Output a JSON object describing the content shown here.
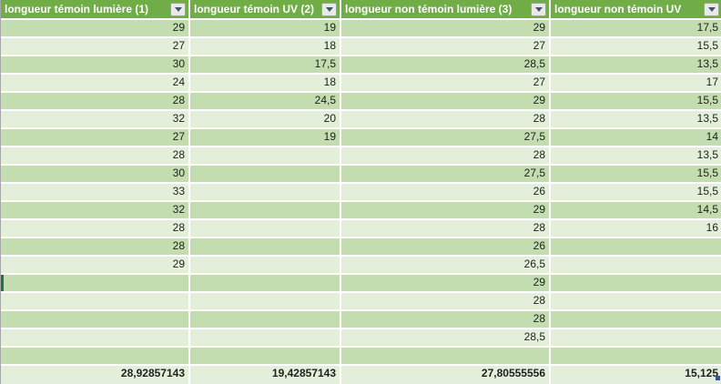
{
  "app": "spreadsheet-filtered-table",
  "colors": {
    "header_green": "#71AD47",
    "band_dark": "#C4DDB0",
    "band_light": "#E3EFDB",
    "grid_white": "#FFFFFF",
    "text_dark": "#1F1F1F",
    "edge_gray": "#A6A6A6",
    "selection_green": "#1E7145",
    "handle_blue": "#2F5597",
    "btn_bg": "#E9E9E9",
    "btn_border": "#9E9E9E",
    "btn_arrow": "#44546A"
  },
  "icons": {
    "header_filter": "filter-dropdown-arrow-icon"
  },
  "table": {
    "columns": [
      {
        "label": "longueur témoin lumière  (1)"
      },
      {
        "label": "longueur témoin UV (2)"
      },
      {
        "label": "longueur non témoin lumière  (3)"
      },
      {
        "label": "longueur non témoin UV"
      }
    ],
    "rows": [
      [
        "29",
        "19",
        "29",
        "17,5"
      ],
      [
        "27",
        "18",
        "27",
        "15,5"
      ],
      [
        "30",
        "17,5",
        "28,5",
        "13,5"
      ],
      [
        "24",
        "18",
        "27",
        "17"
      ],
      [
        "28",
        "24,5",
        "29",
        "15,5"
      ],
      [
        "32",
        "20",
        "28",
        "13,5"
      ],
      [
        "27",
        "19",
        "27,5",
        "14"
      ],
      [
        "28",
        "",
        "28",
        "13,5"
      ],
      [
        "30",
        "",
        "27,5",
        "15,5"
      ],
      [
        "33",
        "",
        "26",
        "15,5"
      ],
      [
        "32",
        "",
        "29",
        "14,5"
      ],
      [
        "28",
        "",
        "28",
        "16"
      ],
      [
        "28",
        "",
        "26",
        ""
      ],
      [
        "29",
        "",
        "26,5",
        ""
      ],
      [
        "",
        "",
        "29",
        ""
      ],
      [
        "",
        "",
        "28",
        ""
      ],
      [
        "",
        "",
        "28",
        ""
      ],
      [
        "",
        "",
        "28,5",
        ""
      ],
      [
        "",
        "",
        "",
        ""
      ]
    ],
    "totals": [
      "28,92857143",
      "19,42857143",
      "27,80555556",
      "15,125"
    ]
  }
}
